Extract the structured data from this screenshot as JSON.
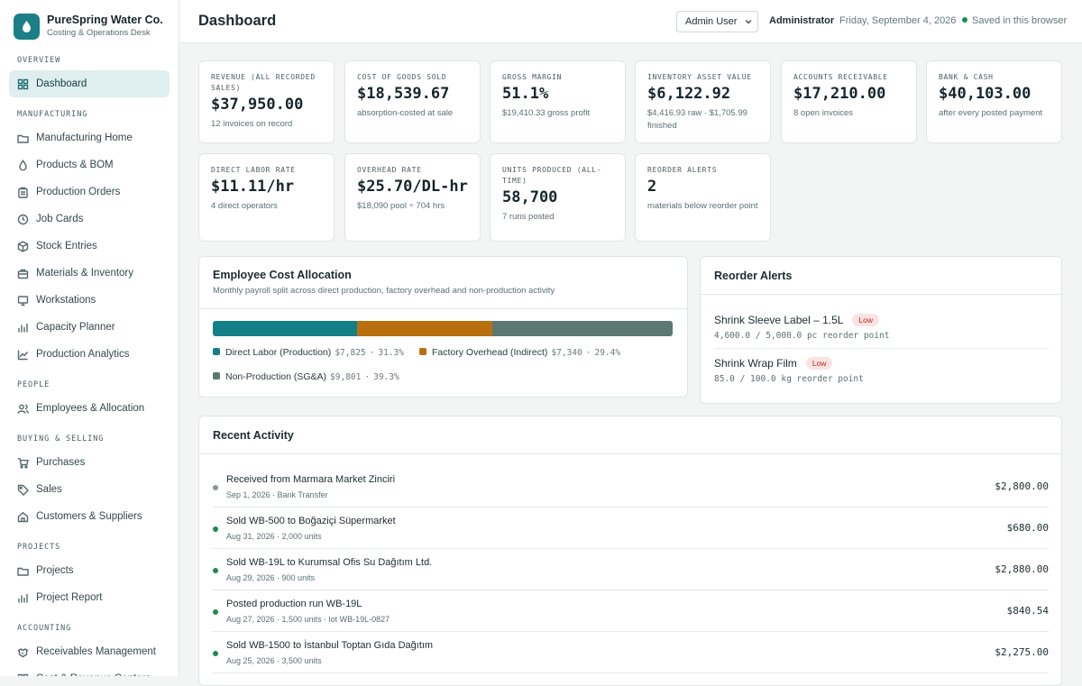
{
  "brand": {
    "name": "PureSpring Water Co.",
    "subtitle": "Costing & Operations Desk"
  },
  "sidebar": {
    "sections": [
      {
        "label": "OVERVIEW",
        "items": [
          {
            "label": "Dashboard",
            "icon": "grid-icon",
            "active": true
          }
        ]
      },
      {
        "label": "MANUFACTURING",
        "items": [
          {
            "label": "Manufacturing Home",
            "icon": "folder-icon"
          },
          {
            "label": "Products & BOM",
            "icon": "droplet-icon"
          },
          {
            "label": "Production Orders",
            "icon": "clipboard-icon"
          },
          {
            "label": "Job Cards",
            "icon": "clock-icon"
          },
          {
            "label": "Stock Entries",
            "icon": "box-icon"
          },
          {
            "label": "Materials & Inventory",
            "icon": "briefcase-icon"
          },
          {
            "label": "Workstations",
            "icon": "monitor-icon"
          },
          {
            "label": "Capacity Planner",
            "icon": "bar-chart-icon"
          },
          {
            "label": "Production Analytics",
            "icon": "line-chart-icon"
          }
        ]
      },
      {
        "label": "PEOPLE",
        "items": [
          {
            "label": "Employees & Allocation",
            "icon": "users-icon"
          }
        ]
      },
      {
        "label": "BUYING & SELLING",
        "items": [
          {
            "label": "Purchases",
            "icon": "cart-icon"
          },
          {
            "label": "Sales",
            "icon": "tag-icon"
          },
          {
            "label": "Customers & Suppliers",
            "icon": "home-icon"
          }
        ]
      },
      {
        "label": "PROJECTS",
        "items": [
          {
            "label": "Projects",
            "icon": "folder-icon"
          },
          {
            "label": "Project Report",
            "icon": "bar-chart-icon"
          }
        ]
      },
      {
        "label": "ACCOUNTING",
        "items": [
          {
            "label": "Receivables Management",
            "icon": "handshake-icon"
          },
          {
            "label": "Cost & Revenue Centers",
            "icon": "grid-icon"
          }
        ]
      }
    ]
  },
  "header": {
    "title": "Dashboard",
    "user_select": "Admin User",
    "role": "Administrator",
    "date": "Friday, September 4, 2026",
    "saved": "Saved in this browser"
  },
  "kpis": [
    {
      "label": "REVENUE (ALL RECORDED SALES)",
      "value": "$37,950.00",
      "sub": "12 invoices on record"
    },
    {
      "label": "COST OF GOODS SOLD",
      "value": "$18,539.67",
      "sub": "absorption-costed at sale"
    },
    {
      "label": "GROSS MARGIN",
      "value": "51.1%",
      "sub": "$19,410.33 gross profit"
    },
    {
      "label": "INVENTORY ASSET VALUE",
      "value": "$6,122.92",
      "sub": "$4,416.93 raw · $1,705.99 finished"
    },
    {
      "label": "ACCOUNTS RECEIVABLE",
      "value": "$17,210.00",
      "sub": "8 open invoices"
    },
    {
      "label": "BANK & CASH",
      "value": "$40,103.00",
      "sub": "after every posted payment"
    },
    {
      "label": "DIRECT LABOR RATE",
      "value": "$11.11/hr",
      "sub": "4 direct operators"
    },
    {
      "label": "OVERHEAD RATE",
      "value": "$25.70/DL-hr",
      "sub": "$18,090 pool ÷ 704 hrs"
    },
    {
      "label": "UNITS PRODUCED (ALL-TIME)",
      "value": "58,700",
      "sub": "7 runs posted"
    },
    {
      "label": "REORDER ALERTS",
      "value": "2",
      "sub": "materials below reorder point"
    }
  ],
  "allocation": {
    "title": "Employee Cost Allocation",
    "subtitle": "Monthly payroll split across direct production, factory overhead and non-production activity",
    "segments": [
      {
        "label": "Direct Labor (Production)",
        "amount": "$7,825",
        "pct": "31.3%",
        "fraction": 0.313,
        "color": "#147f86"
      },
      {
        "label": "Factory Overhead (Indirect)",
        "amount": "$7,340",
        "pct": "29.4%",
        "fraction": 0.294,
        "color": "#b8700f"
      },
      {
        "label": "Non-Production (SG&A)",
        "amount": "$9,801",
        "pct": "39.3%",
        "fraction": 0.393,
        "color": "#5d7772"
      }
    ]
  },
  "reorder": {
    "title": "Reorder Alerts",
    "items": [
      {
        "name": "Shrink Sleeve Label – 1.5L",
        "meta": "4,600.0 / 5,000.0 pc reorder point",
        "badge": "Low"
      },
      {
        "name": "Shrink Wrap Film",
        "meta": "85.0 / 100.0 kg reorder point",
        "badge": "Low"
      }
    ]
  },
  "activity": {
    "title": "Recent Activity",
    "rows": [
      {
        "title": "Received from Marmara Market Zinciri",
        "meta": "Sep 1, 2026 · Bank Transfer",
        "amount": "$2,800.00",
        "dot": "#8a9598"
      },
      {
        "title": "Sold WB-500 to Boğaziçi Süpermarket",
        "meta": "Aug 31, 2026 · 2,000 units",
        "amount": "$680.00",
        "dot": "#1f8a4c"
      },
      {
        "title": "Sold WB-19L to Kurumsal Ofis Su Dağıtım Ltd.",
        "meta": "Aug 29, 2026 · 900 units",
        "amount": "$2,880.00",
        "dot": "#1f8a4c"
      },
      {
        "title": "Posted production run WB-19L",
        "meta": "Aug 27, 2026 · 1,500 units · lot WB-19L-0827",
        "amount": "$840.54",
        "dot": "#1f8a4c"
      },
      {
        "title": "Sold WB-1500 to İstanbul Toptan Gıda Dağıtım",
        "meta": "Aug 25, 2026 · 3,500 units",
        "amount": "$2,275.00",
        "dot": "#1f8a4c"
      }
    ]
  }
}
